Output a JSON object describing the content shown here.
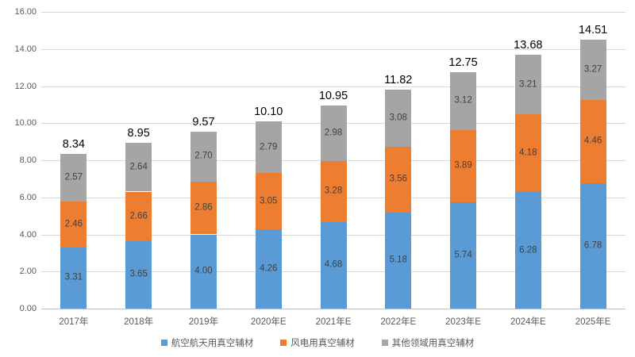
{
  "chart_data": {
    "type": "bar",
    "stacked": true,
    "title": "",
    "xlabel": "",
    "ylabel": "",
    "categories": [
      "2017年",
      "2018年",
      "2019年",
      "2020年E",
      "2021年E",
      "2022年E",
      "2023年E",
      "2024年E",
      "2025年E"
    ],
    "series": [
      {
        "name": "航空航天用真空辅材",
        "color": "#5b9bd5",
        "values": [
          3.31,
          3.65,
          4.0,
          4.26,
          4.68,
          5.18,
          5.74,
          6.28,
          6.78
        ]
      },
      {
        "name": "风电用真空辅材",
        "color": "#ed7d31",
        "values": [
          2.46,
          2.66,
          2.86,
          3.05,
          3.28,
          3.56,
          3.89,
          4.18,
          4.46
        ]
      },
      {
        "name": "其他领域用真空辅材",
        "color": "#a5a5a5",
        "values": [
          2.57,
          2.64,
          2.7,
          2.79,
          2.98,
          3.08,
          3.12,
          3.21,
          3.27
        ]
      }
    ],
    "totals": [
      8.34,
      8.95,
      9.57,
      10.1,
      10.95,
      11.82,
      12.75,
      13.68,
      14.51
    ],
    "y_axis": {
      "min": 0,
      "max": 16,
      "step": 2,
      "tick_labels": [
        "0.00",
        "2.00",
        "4.00",
        "6.00",
        "8.00",
        "10.00",
        "12.00",
        "14.00",
        "16.00"
      ]
    },
    "grid": true,
    "legend_position": "bottom",
    "colors": {
      "gridline": "#d9d9d9",
      "axis_text": "#595959",
      "total_label": "#000000",
      "segment_label": "#404040",
      "background": "#ffffff"
    }
  }
}
